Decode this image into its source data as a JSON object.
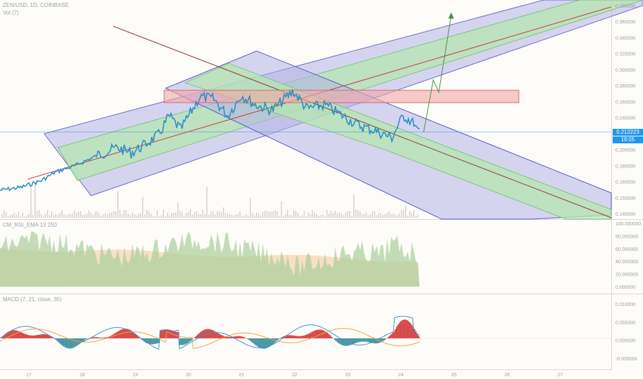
{
  "header": {
    "symbol": "ZEN/USD, 1D, COINBASE",
    "sub": "Vol (7)",
    "rsi_label": "CM_RSI_EMA  13  250",
    "macd_label": "MACD (7, 21, close, 35)"
  },
  "badges": {
    "price": "0.212223",
    "countdown": "19:05",
    "price_color": "#2196f3"
  },
  "colors": {
    "price_line": "#2a8fc9",
    "channel_outer": "#8a8ad8",
    "channel_inner": "#9fdf9f",
    "zone": "#f2a6a6",
    "rsi_green": "#a9cf9b",
    "rsi_orange": "#f5d7b5",
    "macd_red": "#d33a3a",
    "macd_teal": "#3c8f9a"
  },
  "chart_data": [
    {
      "type": "line",
      "name": "price",
      "ylim": [
        0.14,
        0.39
      ],
      "y_ticks": [
        "0.380000",
        "0.360000",
        "0.340000",
        "0.320000",
        "0.300000",
        "0.280000",
        "0.260000",
        "0.240000",
        "0.220000",
        "0.200000",
        "0.180000",
        "0.160000",
        "0.150000",
        "0.140000"
      ],
      "x_ticks": [
        "17",
        "18",
        "19",
        "20",
        "21",
        "22",
        "23",
        "24",
        "25",
        "26",
        "27"
      ],
      "last_price": 0.212223
    },
    {
      "type": "area",
      "name": "rsi",
      "ylim": [
        0,
        100
      ],
      "y_ticks": [
        "100.000000",
        "80.000000",
        "60.000000",
        "40.000000",
        "20.000000",
        "0.000000"
      ]
    },
    {
      "type": "bar",
      "name": "macd",
      "ylim": [
        -0.008,
        0.012
      ],
      "y_ticks": [
        "0.010000",
        "0.005000",
        "0.000000",
        "-0.005000"
      ]
    }
  ]
}
